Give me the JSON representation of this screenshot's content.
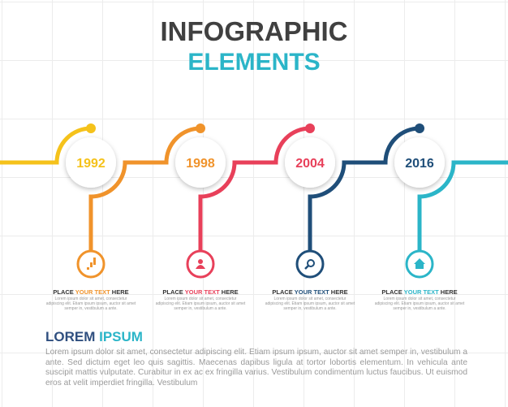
{
  "header": {
    "title_line1": "INFOGRAPHIC",
    "title_line2": "ELEMENTS"
  },
  "steps": [
    {
      "year": "1992",
      "caption_start": "PLACE ",
      "caption_highlight": "YOUR TEXT",
      "caption_end": " HERE",
      "text": "Lorem ipsum dolor sit amet, consectetur adipiscing elit. Etiam ipsum ipsum, auctor sit amet semper in, vestibulum a ante."
    },
    {
      "year": "1998",
      "caption_start": "PLACE ",
      "caption_highlight": "YOUR TEXT",
      "caption_end": " HERE",
      "text": "Lorem ipsum dolor sit amet, consectetur adipiscing elit. Etiam ipsum ipsum, auctor sit amet semper in, vestibulum a ante."
    },
    {
      "year": "2004",
      "caption_start": "PLACE ",
      "caption_highlight": "YOUR TEXT",
      "caption_end": " HERE",
      "text": "Lorem ipsum dolor sit amet, consectetur adipiscing elit. Etiam ipsum ipsum, auctor sit amet semper in, vestibulum a ante."
    },
    {
      "year": "2016",
      "caption_start": "PLACE ",
      "caption_highlight": "YOUR TEXT",
      "caption_end": " HERE",
      "text": "Lorem ipsum dolor sit amet, consectetur adipiscing elit. Etiam ipsum ipsum, auctor sit amet semper in, vestibulum a ante."
    }
  ],
  "footer": {
    "heading_start": "LOREM ",
    "heading_highlight": "IPSUM",
    "paragraph": "Lorem ipsum dolor sit amet, consectetur adipiscing elit. Etiam ipsum ipsum, auctor sit amet semper in, vestibulum a ante. Sed dictum eget leo quis sagittis. Maecenas dapibus ligula at tortor lobortis elementum. In vehicula ante suscipit mattis vulputate. Curabitur in ex ac ex fringilla varius. Vestibulum condimentum luctus faucibus. Ut euismod eros at velit imperdiet fringilla. Vestibulum"
  }
}
